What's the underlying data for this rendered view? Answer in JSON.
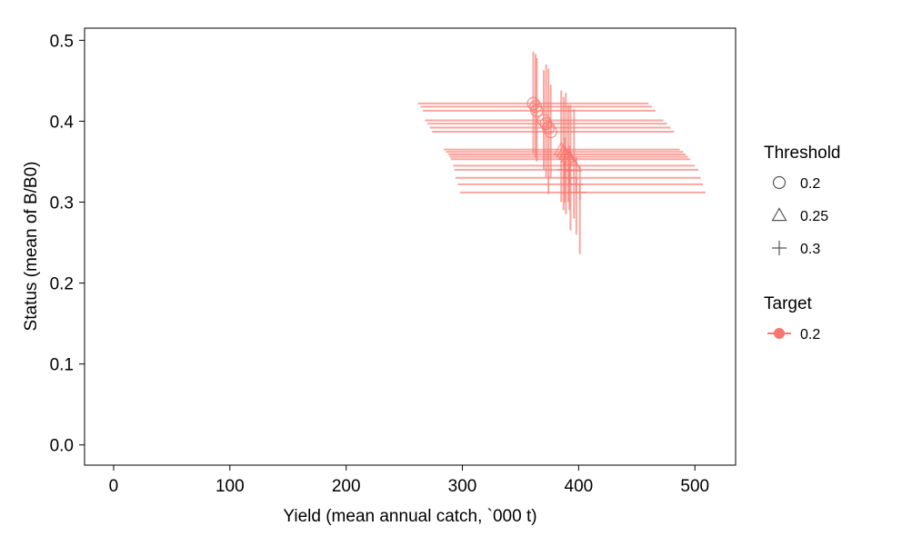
{
  "chart_data": {
    "type": "scatter",
    "title": "",
    "xlabel": "Yield (mean annual catch, `000 t)",
    "ylabel": "Status (mean of B/B0)",
    "xlim": [
      -25,
      535
    ],
    "ylim": [
      -0.025,
      0.515
    ],
    "x_ticks": [
      0,
      100,
      200,
      300,
      400,
      500
    ],
    "x_tick_labels": [
      "0",
      "100",
      "200",
      "300",
      "400",
      "500"
    ],
    "y_ticks": [
      0.0,
      0.1,
      0.2,
      0.3,
      0.4,
      0.5
    ],
    "y_tick_labels": [
      "0.0",
      "0.1",
      "0.2",
      "0.3",
      "0.4",
      "0.5"
    ],
    "grid": false,
    "legend_position": "right",
    "series_color": "#f8766d",
    "point_color": "#888888",
    "legend": {
      "shape_title": "Threshold",
      "shape_items": [
        {
          "label": "0.2",
          "shape": "circle"
        },
        {
          "label": "0.25",
          "shape": "triangle"
        },
        {
          "label": "0.3",
          "shape": "plus"
        }
      ],
      "color_title": "Target",
      "color_items": [
        {
          "label": "0.2",
          "color": "#f8766d"
        }
      ]
    },
    "points": [
      {
        "x": 361,
        "y": 0.422,
        "xmin": 262,
        "xmax": 460,
        "ymin": 0.36,
        "ymax": 0.486,
        "threshold": "0.2"
      },
      {
        "x": 363,
        "y": 0.418,
        "xmin": 264,
        "xmax": 463,
        "ymin": 0.355,
        "ymax": 0.483,
        "threshold": "0.2"
      },
      {
        "x": 364,
        "y": 0.413,
        "xmin": 266,
        "xmax": 466,
        "ymin": 0.35,
        "ymax": 0.478,
        "threshold": "0.2"
      },
      {
        "x": 370,
        "y": 0.401,
        "xmin": 268,
        "xmax": 473,
        "ymin": 0.34,
        "ymax": 0.463,
        "threshold": "0.2"
      },
      {
        "x": 372,
        "y": 0.397,
        "xmin": 270,
        "xmax": 476,
        "ymin": 0.33,
        "ymax": 0.47,
        "threshold": "0.2"
      },
      {
        "x": 374,
        "y": 0.392,
        "xmin": 272,
        "xmax": 479,
        "ymin": 0.31,
        "ymax": 0.465,
        "threshold": "0.2"
      },
      {
        "x": 376,
        "y": 0.387,
        "xmin": 274,
        "xmax": 482,
        "ymin": 0.33,
        "ymax": 0.445,
        "threshold": "0.2"
      },
      {
        "x": 385,
        "y": 0.365,
        "xmin": 284,
        "xmax": 487,
        "ymin": 0.3,
        "ymax": 0.438,
        "threshold": "0.25"
      },
      {
        "x": 387,
        "y": 0.362,
        "xmin": 286,
        "xmax": 490,
        "ymin": 0.29,
        "ymax": 0.43,
        "threshold": "0.25"
      },
      {
        "x": 389,
        "y": 0.359,
        "xmin": 288,
        "xmax": 492,
        "ymin": 0.285,
        "ymax": 0.435,
        "threshold": "0.25"
      },
      {
        "x": 391,
        "y": 0.356,
        "xmin": 289,
        "xmax": 494,
        "ymin": 0.3,
        "ymax": 0.42,
        "threshold": "0.25"
      },
      {
        "x": 393,
        "y": 0.353,
        "xmin": 290,
        "xmax": 496,
        "ymin": 0.265,
        "ymax": 0.42,
        "threshold": "0.25"
      },
      {
        "x": 396,
        "y": 0.345,
        "xmin": 292,
        "xmax": 500,
        "ymin": 0.28,
        "ymax": 0.415,
        "threshold": "0.25"
      },
      {
        "x": 388,
        "y": 0.34,
        "xmin": 293,
        "xmax": 503,
        "ymin": 0.3,
        "ymax": 0.38,
        "threshold": "0.3"
      },
      {
        "x": 392,
        "y": 0.33,
        "xmin": 294,
        "xmax": 505,
        "ymin": 0.29,
        "ymax": 0.37,
        "threshold": "0.3"
      },
      {
        "x": 398,
        "y": 0.322,
        "xmin": 296,
        "xmax": 507,
        "ymin": 0.26,
        "ymax": 0.355,
        "threshold": "0.3"
      },
      {
        "x": 401,
        "y": 0.312,
        "xmin": 298,
        "xmax": 509,
        "ymin": 0.236,
        "ymax": 0.345,
        "threshold": "0.3"
      }
    ]
  }
}
